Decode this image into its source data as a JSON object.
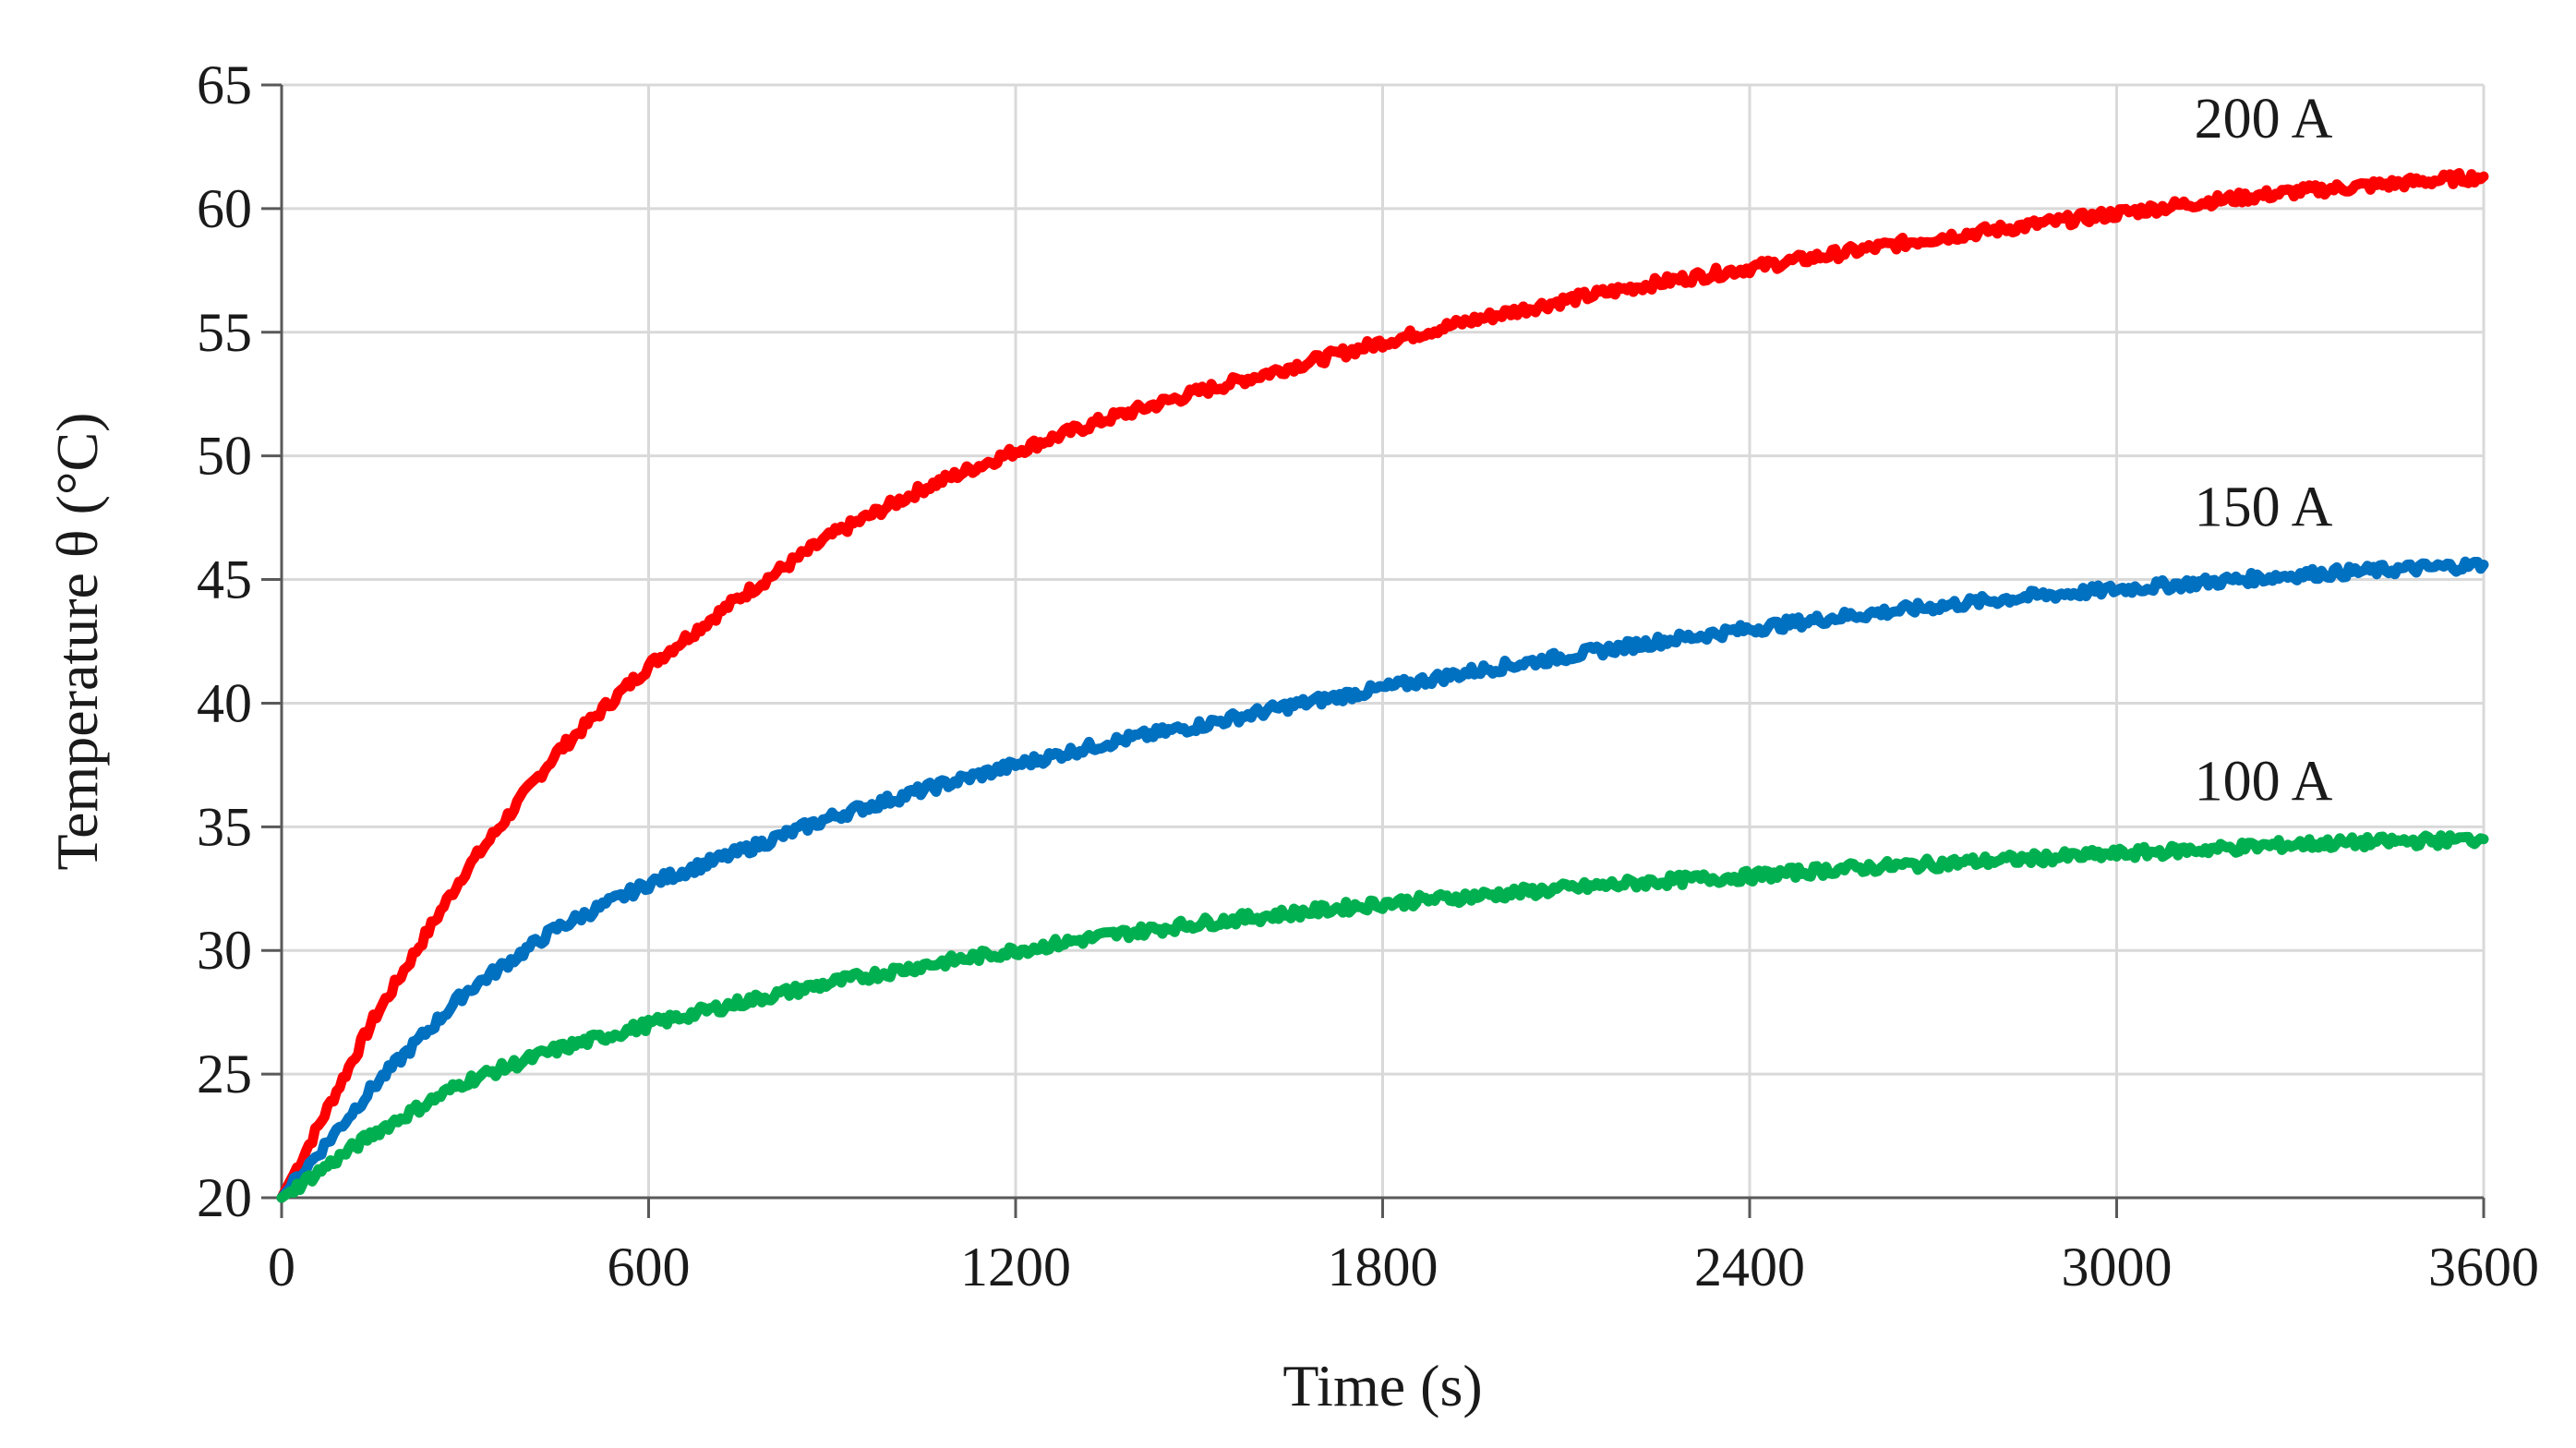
{
  "chart_data": {
    "type": "line",
    "xlabel": "Time (s)",
    "ylabel": "Temperature θ (°C)",
    "xlim": [
      0,
      3600
    ],
    "ylim": [
      20,
      65
    ],
    "xticks": [
      "0",
      "600",
      "1200",
      "1800",
      "2400",
      "3000",
      "3600"
    ],
    "yticks": [
      "20",
      "25",
      "30",
      "35",
      "40",
      "45",
      "50",
      "55",
      "60",
      "65"
    ],
    "grid": true,
    "legend": "none",
    "x": [
      0,
      150,
      300,
      450,
      600,
      750,
      900,
      1050,
      1200,
      1350,
      1500,
      1650,
      1800,
      1950,
      2100,
      2250,
      2400,
      2550,
      2700,
      2850,
      3000,
      3150,
      3300,
      3450,
      3600
    ],
    "series": [
      {
        "name": "200 A",
        "color": "#ff0000",
        "values": [
          20.0,
          27.2,
          33.2,
          38.0,
          41.5,
          44.3,
          46.8,
          48.7,
          50.2,
          51.5,
          52.6,
          53.6,
          54.6,
          55.5,
          56.3,
          57.0,
          57.6,
          58.2,
          58.8,
          59.3,
          59.8,
          60.3,
          60.7,
          61.0,
          61.3
        ]
      },
      {
        "name": "150 A",
        "color": "#0070c0",
        "values": [
          20.0,
          24.5,
          28.3,
          30.9,
          32.7,
          34.0,
          35.4,
          36.5,
          37.5,
          38.4,
          39.1,
          39.9,
          40.6,
          41.3,
          41.9,
          42.5,
          43.0,
          43.5,
          43.9,
          44.3,
          44.6,
          44.9,
          45.2,
          45.4,
          45.6
        ]
      },
      {
        "name": "100 A",
        "color": "#00b050",
        "values": [
          20.0,
          22.6,
          24.7,
          26.0,
          27.0,
          27.9,
          28.7,
          29.4,
          30.0,
          30.6,
          31.1,
          31.5,
          31.9,
          32.2,
          32.5,
          32.8,
          33.0,
          33.3,
          33.5,
          33.7,
          33.9,
          34.1,
          34.3,
          34.4,
          34.5
        ]
      }
    ]
  }
}
